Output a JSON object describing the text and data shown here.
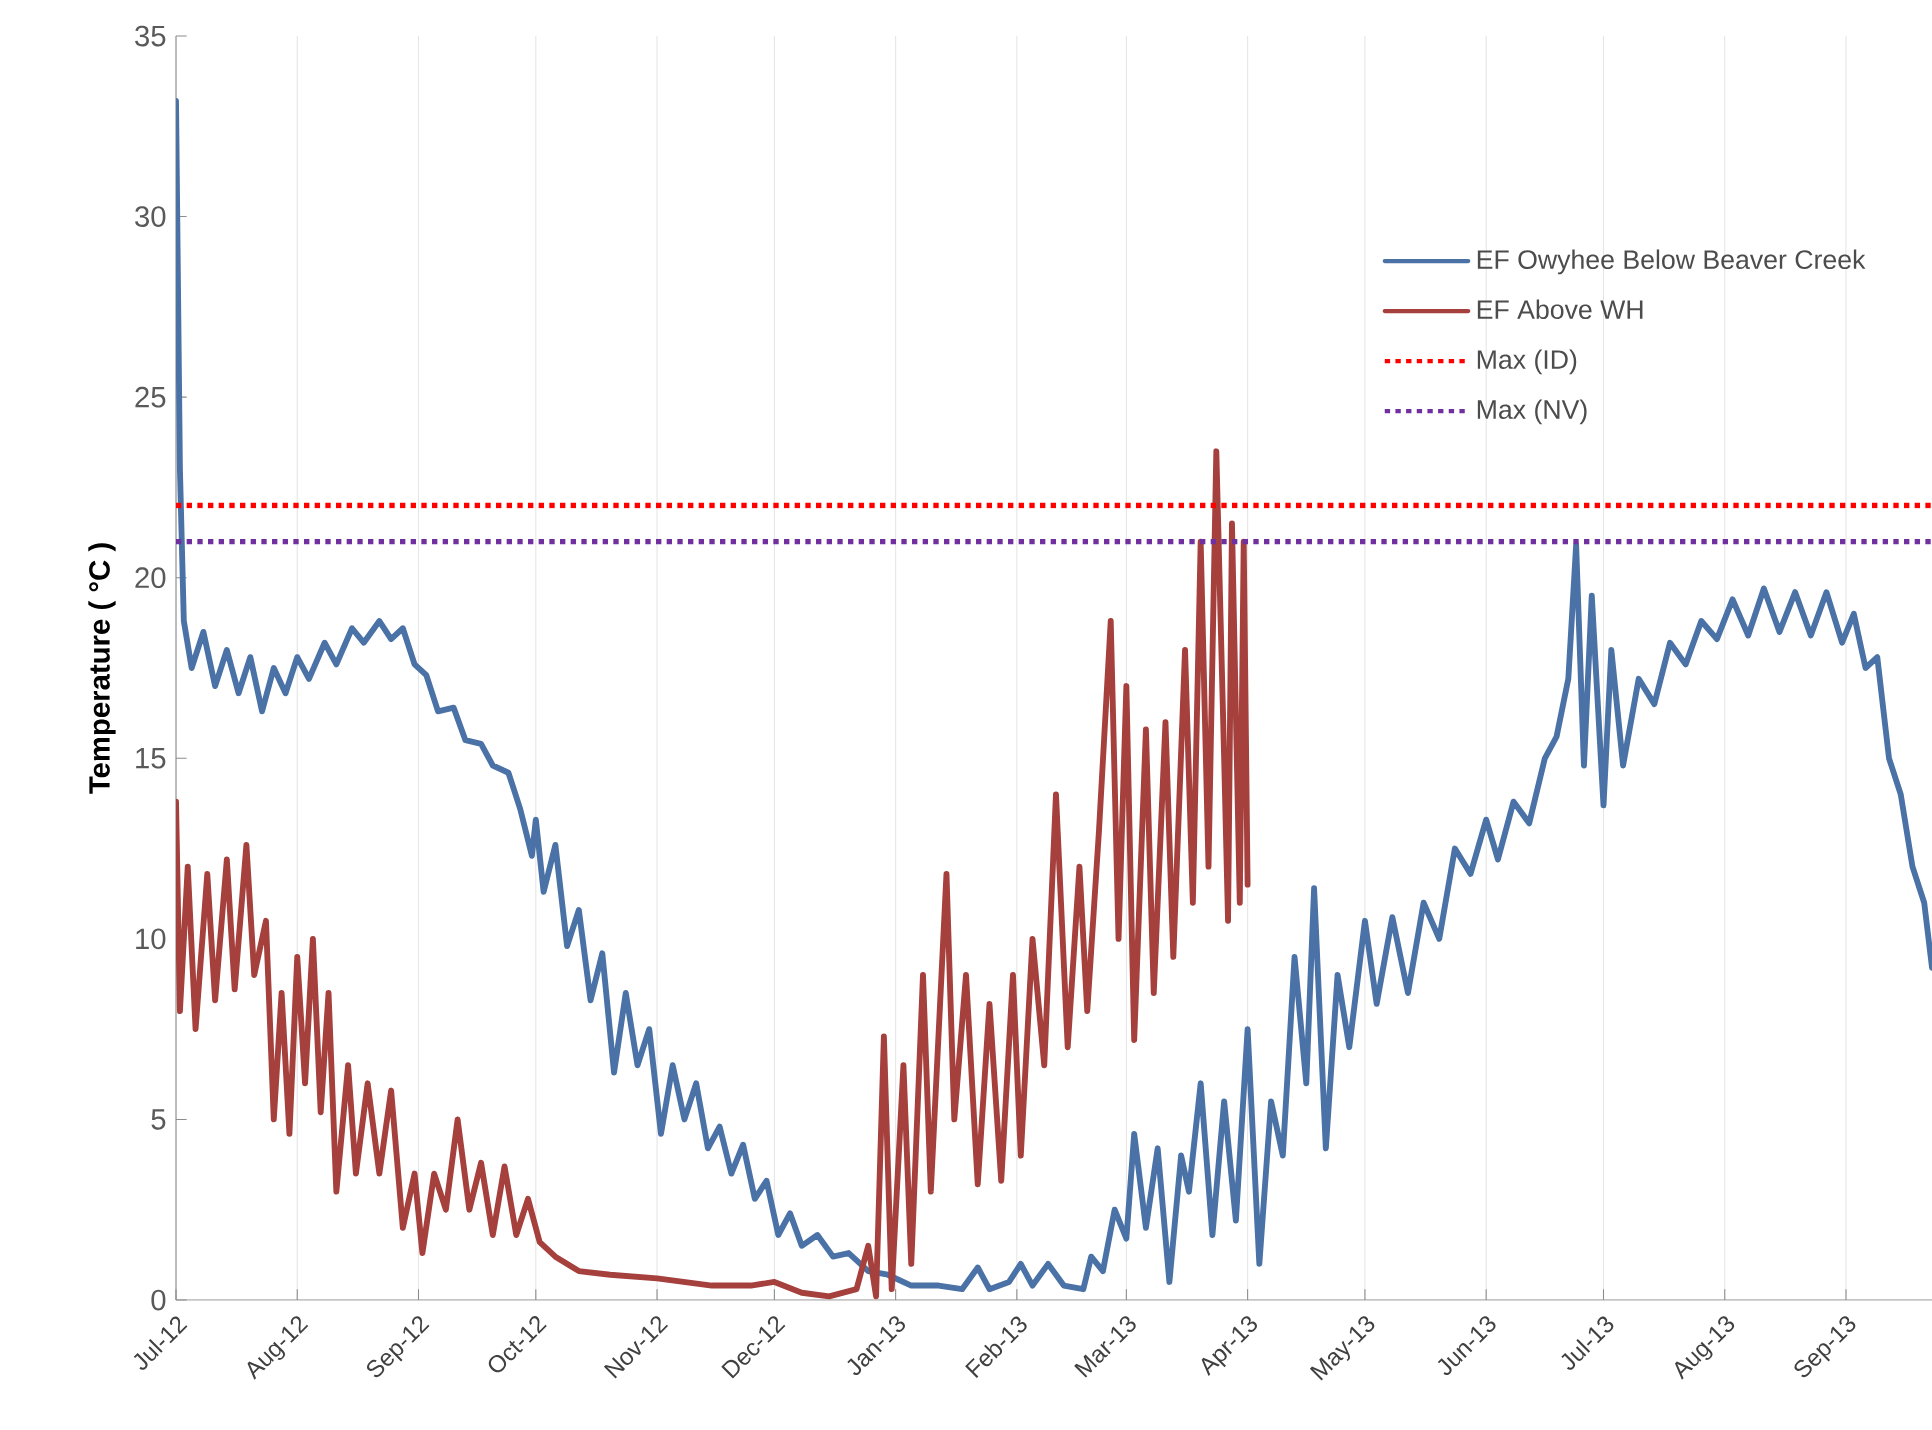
{
  "chart_data": {
    "type": "line",
    "ylabel": "Temperature ( °C )",
    "xlim": [
      "2012-07-01",
      "2013-09-23"
    ],
    "ylim": [
      0,
      35
    ],
    "yticks": [
      0,
      5,
      10,
      15,
      20,
      25,
      30,
      35
    ],
    "xticks": [
      {
        "value": "2012-07-01",
        "label": "Jul-12"
      },
      {
        "value": "2012-08-01",
        "label": "Aug-12"
      },
      {
        "value": "2012-09-01",
        "label": "Sep-12"
      },
      {
        "value": "2012-10-01",
        "label": "Oct-12"
      },
      {
        "value": "2012-11-01",
        "label": "Nov-12"
      },
      {
        "value": "2012-12-01",
        "label": "Dec-12"
      },
      {
        "value": "2013-01-01",
        "label": "Jan-13"
      },
      {
        "value": "2013-02-01",
        "label": "Feb-13"
      },
      {
        "value": "2013-03-01",
        "label": "Mar-13"
      },
      {
        "value": "2013-04-01",
        "label": "Apr-13"
      },
      {
        "value": "2013-05-01",
        "label": "May-13"
      },
      {
        "value": "2013-06-01",
        "label": "Jun-13"
      },
      {
        "value": "2013-07-01",
        "label": "Jul-13"
      },
      {
        "value": "2013-08-01",
        "label": "Aug-13"
      },
      {
        "value": "2013-09-01",
        "label": "Sep-13"
      }
    ],
    "grid": "x",
    "legend": "top right",
    "marker": "none",
    "line_style": "solid",
    "series": [
      {
        "name": "EF Owyhee Below Beaver Creek",
        "color": "#4a72a6",
        "x": [
          "2012-07-01",
          "2012-07-02",
          "2012-07-03",
          "2012-07-05",
          "2012-07-08",
          "2012-07-11",
          "2012-07-14",
          "2012-07-17",
          "2012-07-20",
          "2012-07-23",
          "2012-07-26",
          "2012-07-29",
          "2012-08-01",
          "2012-08-04",
          "2012-08-08",
          "2012-08-11",
          "2012-08-15",
          "2012-08-18",
          "2012-08-22",
          "2012-08-25",
          "2012-08-28",
          "2012-08-31",
          "2012-09-03",
          "2012-09-06",
          "2012-09-10",
          "2012-09-13",
          "2012-09-17",
          "2012-09-20",
          "2012-09-24",
          "2012-09-27",
          "2012-09-30",
          "2012-10-01",
          "2012-10-03",
          "2012-10-06",
          "2012-10-09",
          "2012-10-12",
          "2012-10-15",
          "2012-10-18",
          "2012-10-21",
          "2012-10-24",
          "2012-10-27",
          "2012-10-30",
          "2012-11-02",
          "2012-11-05",
          "2012-11-08",
          "2012-11-11",
          "2012-11-14",
          "2012-11-17",
          "2012-11-20",
          "2012-11-23",
          "2012-11-26",
          "2012-11-29",
          "2012-12-02",
          "2012-12-05",
          "2012-12-08",
          "2012-12-12",
          "2012-12-16",
          "2012-12-20",
          "2012-12-25",
          "2012-12-30",
          "2013-01-05",
          "2013-01-12",
          "2013-01-18",
          "2013-01-22",
          "2013-01-25",
          "2013-01-30",
          "2013-02-02",
          "2013-02-05",
          "2013-02-09",
          "2013-02-13",
          "2013-02-18",
          "2013-02-20",
          "2013-02-23",
          "2013-02-26",
          "2013-03-01",
          "2013-03-03",
          "2013-03-06",
          "2013-03-09",
          "2013-03-12",
          "2013-03-15",
          "2013-03-17",
          "2013-03-20",
          "2013-03-23",
          "2013-03-26",
          "2013-03-29",
          "2013-04-01",
          "2013-04-04",
          "2013-04-07",
          "2013-04-10",
          "2013-04-13",
          "2013-04-16",
          "2013-04-18",
          "2013-04-21",
          "2013-04-24",
          "2013-04-27",
          "2013-05-01",
          "2013-05-04",
          "2013-05-08",
          "2013-05-12",
          "2013-05-16",
          "2013-05-20",
          "2013-05-24",
          "2013-05-28",
          "2013-06-01",
          "2013-06-04",
          "2013-06-08",
          "2013-06-12",
          "2013-06-16",
          "2013-06-19",
          "2013-06-22",
          "2013-06-24",
          "2013-06-26",
          "2013-06-28",
          "2013-07-01",
          "2013-07-03",
          "2013-07-06",
          "2013-07-10",
          "2013-07-14",
          "2013-07-18",
          "2013-07-22",
          "2013-07-26",
          "2013-07-30",
          "2013-08-03",
          "2013-08-07",
          "2013-08-11",
          "2013-08-15",
          "2013-08-19",
          "2013-08-23",
          "2013-08-27",
          "2013-08-31",
          "2013-09-03",
          "2013-09-06",
          "2013-09-09",
          "2013-09-12",
          "2013-09-15",
          "2013-09-18",
          "2013-09-21",
          "2013-09-23"
        ],
        "values": [
          33.2,
          23,
          18.8,
          17.5,
          18.5,
          17,
          18,
          16.8,
          17.8,
          16.3,
          17.5,
          16.8,
          17.8,
          17.2,
          18.2,
          17.6,
          18.6,
          18.2,
          18.8,
          18.3,
          18.6,
          17.6,
          17.3,
          16.3,
          16.4,
          15.5,
          15.4,
          14.8,
          14.6,
          13.6,
          12.3,
          13.3,
          11.3,
          12.6,
          9.8,
          10.8,
          8.3,
          9.6,
          6.3,
          8.5,
          6.5,
          7.5,
          4.6,
          6.5,
          5.0,
          6.0,
          4.2,
          4.8,
          3.5,
          4.3,
          2.8,
          3.3,
          1.8,
          2.4,
          1.5,
          1.8,
          1.2,
          1.3,
          0.8,
          0.7,
          0.4,
          0.4,
          0.3,
          0.9,
          0.3,
          0.5,
          1.0,
          0.4,
          1.0,
          0.4,
          0.3,
          1.2,
          0.8,
          2.5,
          1.7,
          4.6,
          2.0,
          4.2,
          0.5,
          4.0,
          3.0,
          6.0,
          1.8,
          5.5,
          2.2,
          7.5,
          1.0,
          5.5,
          4.0,
          9.5,
          6.0,
          11.4,
          4.2,
          9.0,
          7.0,
          10.5,
          8.2,
          10.6,
          8.5,
          11.0,
          10.0,
          12.5,
          11.8,
          13.3,
          12.2,
          13.8,
          13.2,
          15.0,
          15.6,
          17.2,
          20.9,
          14.8,
          19.5,
          13.7,
          18.0,
          14.8,
          17.2,
          16.5,
          18.2,
          17.6,
          18.8,
          18.3,
          19.4,
          18.4,
          19.7,
          18.5,
          19.6,
          18.4,
          19.6,
          18.2,
          19.0,
          17.5,
          17.8,
          15.0,
          14.0,
          12.0,
          11.0,
          9.2
        ]
      },
      {
        "name": "EF Above WH",
        "color": "#a5403d",
        "x": [
          "2012-07-01",
          "2012-07-02",
          "2012-07-04",
          "2012-07-06",
          "2012-07-09",
          "2012-07-11",
          "2012-07-14",
          "2012-07-16",
          "2012-07-19",
          "2012-07-21",
          "2012-07-24",
          "2012-07-26",
          "2012-07-28",
          "2012-07-30",
          "2012-08-01",
          "2012-08-03",
          "2012-08-05",
          "2012-08-07",
          "2012-08-09",
          "2012-08-11",
          "2012-08-14",
          "2012-08-16",
          "2012-08-19",
          "2012-08-22",
          "2012-08-25",
          "2012-08-28",
          "2012-08-31",
          "2012-09-02",
          "2012-09-05",
          "2012-09-08",
          "2012-09-11",
          "2012-09-14",
          "2012-09-17",
          "2012-09-20",
          "2012-09-23",
          "2012-09-26",
          "2012-09-29",
          "2012-10-02",
          "2012-10-06",
          "2012-10-12",
          "2012-10-20",
          "2012-11-01",
          "2012-11-15",
          "2012-11-25",
          "2012-12-01",
          "2012-12-08",
          "2012-12-15",
          "2012-12-22",
          "2012-12-25",
          "2012-12-27",
          "2012-12-29",
          "2012-12-31",
          "2013-01-03",
          "2013-01-05",
          "2013-01-08",
          "2013-01-10",
          "2013-01-14",
          "2013-01-16",
          "2013-01-19",
          "2013-01-22",
          "2013-01-25",
          "2013-01-28",
          "2013-01-31",
          "2013-02-02",
          "2013-02-05",
          "2013-02-08",
          "2013-02-11",
          "2013-02-14",
          "2013-02-17",
          "2013-02-19",
          "2013-02-22",
          "2013-02-25",
          "2013-02-27",
          "2013-03-01",
          "2013-03-03",
          "2013-03-06",
          "2013-03-08",
          "2013-03-11",
          "2013-03-13",
          "2013-03-16",
          "2013-03-18",
          "2013-03-20",
          "2013-03-22",
          "2013-03-24",
          "2013-03-26",
          "2013-03-27",
          "2013-03-28",
          "2013-03-30",
          "2013-03-31",
          "2013-04-01"
        ],
        "values": [
          13.8,
          8.0,
          12.0,
          7.5,
          11.8,
          8.3,
          12.2,
          8.6,
          12.6,
          9.0,
          10.5,
          5.0,
          8.5,
          4.6,
          9.5,
          6.0,
          10.0,
          5.2,
          8.5,
          3.0,
          6.5,
          3.5,
          6.0,
          3.5,
          5.8,
          2.0,
          3.5,
          1.3,
          3.5,
          2.5,
          5.0,
          2.5,
          3.8,
          1.8,
          3.7,
          1.8,
          2.8,
          1.6,
          1.2,
          0.8,
          0.7,
          0.6,
          0.4,
          0.4,
          0.5,
          0.2,
          0.1,
          0.3,
          1.5,
          0.1,
          7.3,
          0.3,
          6.5,
          1.0,
          9.0,
          3.0,
          11.8,
          5.0,
          9.0,
          3.2,
          8.2,
          3.3,
          9.0,
          4.0,
          10.0,
          6.5,
          14.0,
          7.0,
          12.0,
          8.0,
          13.0,
          18.8,
          10.0,
          17.0,
          7.2,
          15.8,
          8.5,
          16.0,
          9.5,
          18.0,
          11.0,
          21.0,
          12.0,
          23.5,
          15.0,
          10.5,
          21.5,
          11.0,
          21.0,
          11.5
        ]
      }
    ],
    "ref_lines": [
      {
        "axis": "y",
        "value": 22,
        "label": "Max (ID)",
        "color": "#ff0000",
        "line_style": "dotted"
      },
      {
        "axis": "y",
        "value": 21,
        "label": "Max (NV)",
        "color": "#7030a0",
        "line_style": "dotted"
      }
    ]
  }
}
